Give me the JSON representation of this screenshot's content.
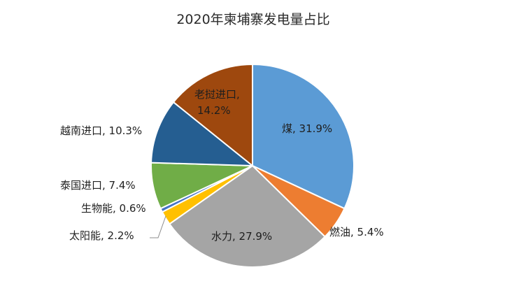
{
  "chart_data": {
    "type": "pie",
    "title": "2020年柬埔寨发电量占比",
    "slices": [
      {
        "name": "煤",
        "value": 31.9,
        "label": "煤, 31.9%",
        "color": "#5b9bd5"
      },
      {
        "name": "燃油",
        "value": 5.4,
        "label": "燃油, 5.4%",
        "color": "#ed7d31"
      },
      {
        "name": "水力",
        "value": 27.9,
        "label": "水力, 27.9%",
        "color": "#a5a5a5"
      },
      {
        "name": "太阳能",
        "value": 2.2,
        "label": "太阳能, 2.2%",
        "color": "#ffc000"
      },
      {
        "name": "生物能",
        "value": 0.6,
        "label": "生物能, 0.6%",
        "color": "#4472c4"
      },
      {
        "name": "泰国进口",
        "value": 7.4,
        "label": "泰国进口, 7.4%",
        "color": "#70ad47"
      },
      {
        "name": "越南进口",
        "value": 10.3,
        "label": "越南进口, 10.3%",
        "color": "#255e91"
      },
      {
        "name": "老挝进口",
        "value": 14.2,
        "label_line1": "老挝进口,",
        "label_line2": "14.2%",
        "color": "#9e480e"
      }
    ]
  }
}
